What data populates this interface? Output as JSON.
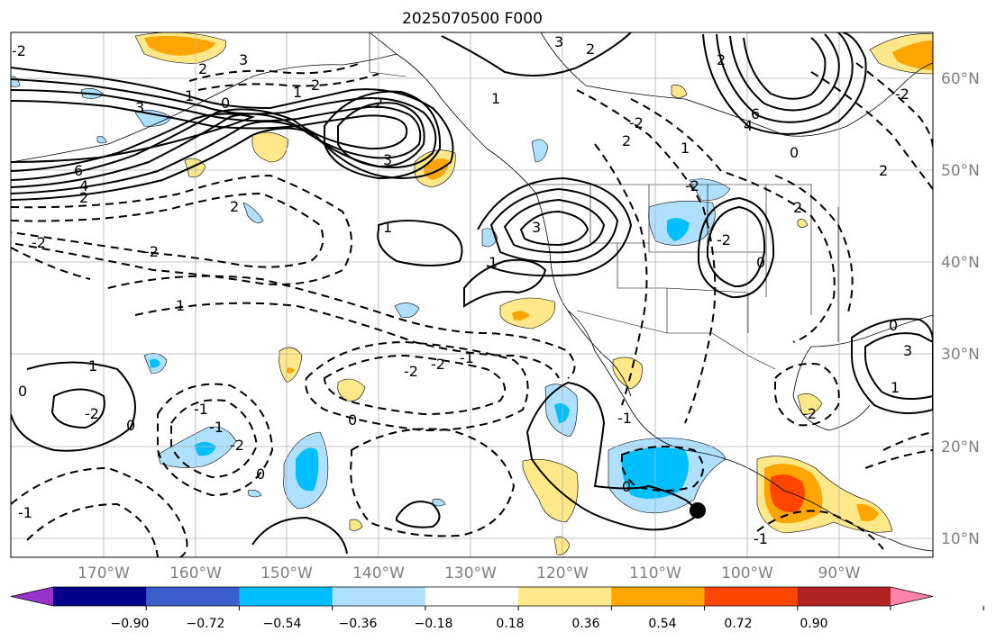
{
  "title": "2025070500 F000",
  "lat_labels": [
    "60°N",
    "50°N",
    "40°N",
    "30°N",
    "20°N",
    "10°N"
  ],
  "lon_labels": [
    "170°W",
    "160°W",
    "150°W",
    "140°W",
    "130°W",
    "120°W",
    "110°W",
    "100°W",
    "90°W"
  ],
  "colorbar": {
    "ticks": [
      "−0.90",
      "−0.72",
      "−0.54",
      "−0.36",
      "−0.18",
      "0.18",
      "0.36",
      "0.54",
      "0.72",
      "0.90"
    ],
    "colors": [
      "#9932cc",
      "#00008b",
      "#3a5fcd",
      "#00bfff",
      "#afe0ff",
      "#ffffff",
      "#ffe88a",
      "#ffa500",
      "#ff4500",
      "#b22222",
      "#ff82ab"
    ]
  },
  "contour_labels": [
    "3",
    "2",
    "1",
    "0",
    "3",
    "4",
    "6",
    "2",
    "3",
    "-2",
    "1",
    "2",
    "3",
    "2",
    "-2",
    "1",
    "2",
    "-2",
    "-2",
    "-2",
    "-1",
    "-1",
    "1",
    "-1",
    "0",
    "-2",
    "-1",
    "0",
    "-2",
    "0",
    "0",
    "-1",
    "1",
    "3",
    "2",
    "1",
    "-1",
    "-2",
    "0",
    "1",
    "4",
    "6",
    "2",
    "1",
    "2",
    "0",
    "3",
    "2",
    "-2",
    "2",
    "-2",
    "-2",
    "0",
    "1",
    "0",
    "-2"
  ],
  "marker": "filled-circle"
}
